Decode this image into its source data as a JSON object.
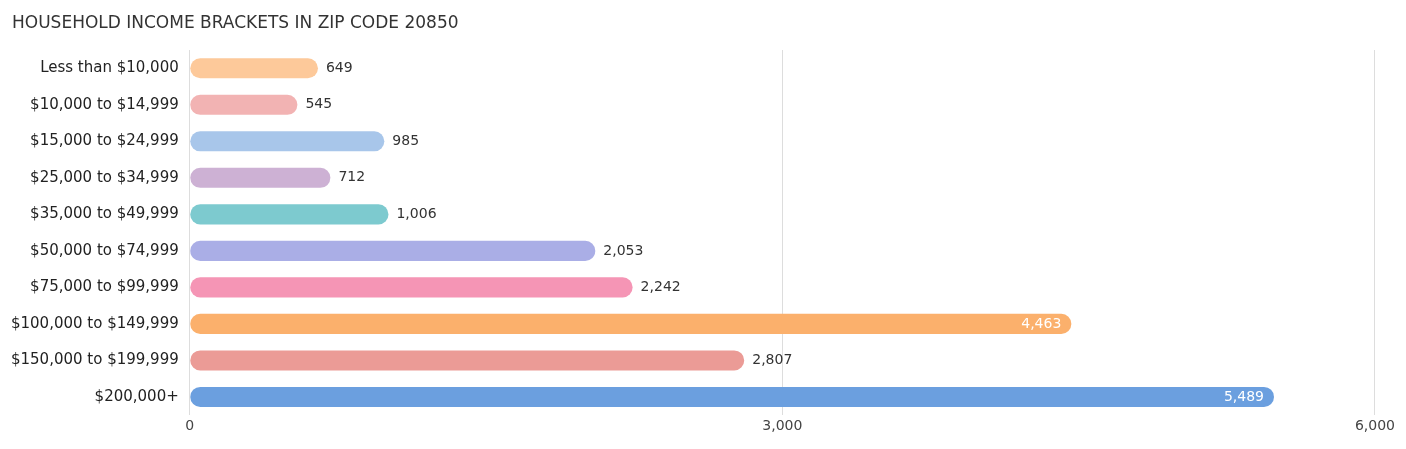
{
  "chart_data": {
    "type": "bar",
    "orientation": "horizontal",
    "title": "HOUSEHOLD INCOME BRACKETS IN ZIP CODE 20850",
    "categories": [
      "Less than $10,000",
      "$10,000 to $14,999",
      "$15,000 to $24,999",
      "$25,000 to $34,999",
      "$35,000 to $49,999",
      "$50,000 to $74,999",
      "$75,000 to $99,999",
      "$100,000 to $149,999",
      "$150,000 to $199,999",
      "$200,000+"
    ],
    "values": [
      649,
      545,
      985,
      712,
      1006,
      2053,
      2242,
      4463,
      2807,
      5489
    ],
    "value_labels": [
      "649",
      "545",
      "985",
      "712",
      "1,006",
      "2,053",
      "2,242",
      "4,463",
      "2,807",
      "5,489"
    ],
    "colors": [
      "#fdc99a",
      "#f2b3b3",
      "#a8c6ea",
      "#cdb1d4",
      "#7dcacf",
      "#aaaee6",
      "#f595b5",
      "#fbb06c",
      "#eb9b96",
      "#6b9fdf"
    ],
    "xlim": [
      0,
      6000
    ],
    "xticks": [
      {
        "value": 0,
        "label": "0"
      },
      {
        "value": 3000,
        "label": "3,000"
      },
      {
        "value": 6000,
        "label": "6,000"
      }
    ],
    "grid": "x",
    "legend": false
  }
}
